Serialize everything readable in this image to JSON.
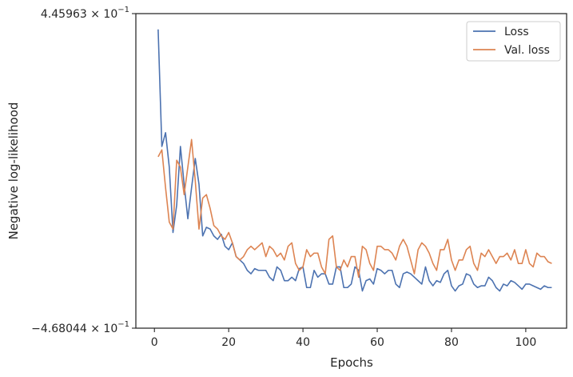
{
  "chart_data": {
    "type": "line",
    "xlabel": "Epochs",
    "ylabel": "Negative log-likelihood",
    "xlim": [
      -5,
      111
    ],
    "ylim": [
      -0.468044,
      0.445963
    ],
    "xticks": [
      0,
      20,
      40,
      60,
      80,
      100
    ],
    "xtick_labels": [
      "0",
      "20",
      "40",
      "60",
      "80",
      "100"
    ],
    "ytick_labels": [
      {
        "value": 0.445963,
        "mantissa": "4.45963",
        "text": "4.45963 × 10",
        "exp": "−1"
      },
      {
        "value": -0.468044,
        "mantissa": "−4.68044",
        "text": "−4.68044 × 10",
        "exp": "−1"
      }
    ],
    "grid": false,
    "legend_position": "top-right",
    "colors": {
      "Loss": "#4c72b0",
      "Val. loss": "#dd8452"
    },
    "series": [
      {
        "name": "Loss",
        "color": "#4c72b0",
        "x": [
          1,
          2,
          3,
          4,
          5,
          6,
          7,
          8,
          9,
          10,
          11,
          12,
          13,
          14,
          15,
          16,
          17,
          18,
          19,
          20,
          21,
          22,
          23,
          24,
          25,
          26,
          27,
          28,
          29,
          30,
          31,
          32,
          33,
          34,
          35,
          36,
          37,
          38,
          39,
          40,
          41,
          42,
          43,
          44,
          45,
          46,
          47,
          48,
          49,
          50,
          51,
          52,
          53,
          54,
          55,
          56,
          57,
          58,
          59,
          60,
          61,
          62,
          63,
          64,
          65,
          66,
          67,
          68,
          69,
          70,
          71,
          72,
          73,
          74,
          75,
          76,
          77,
          78,
          79,
          80,
          81,
          82,
          83,
          84,
          85,
          86,
          87,
          88,
          89,
          90,
          91,
          92,
          93,
          94,
          95,
          96,
          97,
          98,
          99,
          100,
          101,
          102,
          103,
          104,
          105,
          106,
          107
        ],
        "y": [
          0.4,
          0.06,
          0.1,
          0.0,
          -0.19,
          -0.11,
          0.06,
          -0.05,
          -0.15,
          -0.06,
          0.025,
          -0.05,
          -0.2,
          -0.175,
          -0.18,
          -0.2,
          -0.21,
          -0.195,
          -0.23,
          -0.24,
          -0.22,
          -0.26,
          -0.27,
          -0.28,
          -0.3,
          -0.31,
          -0.295,
          -0.3,
          -0.3,
          -0.3,
          -0.32,
          -0.33,
          -0.29,
          -0.3,
          -0.33,
          -0.33,
          -0.32,
          -0.33,
          -0.295,
          -0.29,
          -0.35,
          -0.35,
          -0.3,
          -0.32,
          -0.31,
          -0.31,
          -0.34,
          -0.34,
          -0.29,
          -0.29,
          -0.35,
          -0.35,
          -0.34,
          -0.29,
          -0.3,
          -0.36,
          -0.33,
          -0.325,
          -0.34,
          -0.295,
          -0.3,
          -0.31,
          -0.3,
          -0.3,
          -0.34,
          -0.35,
          -0.31,
          -0.305,
          -0.31,
          -0.32,
          -0.33,
          -0.34,
          -0.29,
          -0.33,
          -0.345,
          -0.33,
          -0.335,
          -0.31,
          -0.3,
          -0.345,
          -0.36,
          -0.345,
          -0.34,
          -0.31,
          -0.315,
          -0.34,
          -0.35,
          -0.345,
          -0.345,
          -0.32,
          -0.33,
          -0.35,
          -0.36,
          -0.34,
          -0.345,
          -0.33,
          -0.335,
          -0.345,
          -0.355,
          -0.34,
          -0.34,
          -0.345,
          -0.35,
          -0.355,
          -0.345,
          -0.35,
          -0.35
        ]
      },
      {
        "name": "Val. loss",
        "color": "#dd8452",
        "x": [
          1,
          2,
          3,
          4,
          5,
          6,
          7,
          8,
          9,
          10,
          11,
          12,
          13,
          14,
          15,
          16,
          17,
          18,
          19,
          20,
          21,
          22,
          23,
          24,
          25,
          26,
          27,
          28,
          29,
          30,
          31,
          32,
          33,
          34,
          35,
          36,
          37,
          38,
          39,
          40,
          41,
          42,
          43,
          44,
          45,
          46,
          47,
          48,
          49,
          50,
          51,
          52,
          53,
          54,
          55,
          56,
          57,
          58,
          59,
          60,
          61,
          62,
          63,
          64,
          65,
          66,
          67,
          68,
          69,
          70,
          71,
          72,
          73,
          74,
          75,
          76,
          77,
          78,
          79,
          80,
          81,
          82,
          83,
          84,
          85,
          86,
          87,
          88,
          89,
          90,
          91,
          92,
          93,
          94,
          95,
          96,
          97,
          98,
          99,
          100,
          101,
          102,
          103,
          104,
          105,
          106,
          107
        ],
        "y": [
          0.03,
          0.05,
          -0.06,
          -0.16,
          -0.18,
          0.02,
          0.0,
          -0.08,
          0.0,
          0.08,
          -0.04,
          -0.18,
          -0.09,
          -0.08,
          -0.12,
          -0.17,
          -0.18,
          -0.2,
          -0.21,
          -0.19,
          -0.22,
          -0.26,
          -0.27,
          -0.26,
          -0.24,
          -0.23,
          -0.24,
          -0.23,
          -0.22,
          -0.26,
          -0.23,
          -0.24,
          -0.26,
          -0.25,
          -0.27,
          -0.23,
          -0.22,
          -0.28,
          -0.3,
          -0.29,
          -0.24,
          -0.26,
          -0.25,
          -0.25,
          -0.29,
          -0.31,
          -0.21,
          -0.2,
          -0.29,
          -0.3,
          -0.27,
          -0.29,
          -0.26,
          -0.26,
          -0.32,
          -0.23,
          -0.24,
          -0.28,
          -0.3,
          -0.23,
          -0.23,
          -0.24,
          -0.24,
          -0.25,
          -0.27,
          -0.23,
          -0.21,
          -0.23,
          -0.27,
          -0.31,
          -0.24,
          -0.22,
          -0.23,
          -0.25,
          -0.28,
          -0.3,
          -0.24,
          -0.24,
          -0.21,
          -0.27,
          -0.3,
          -0.27,
          -0.27,
          -0.24,
          -0.23,
          -0.28,
          -0.3,
          -0.25,
          -0.26,
          -0.24,
          -0.26,
          -0.28,
          -0.26,
          -0.26,
          -0.25,
          -0.27,
          -0.24,
          -0.28,
          -0.28,
          -0.24,
          -0.28,
          -0.29,
          -0.25,
          -0.26,
          -0.26,
          -0.275,
          -0.28
        ]
      }
    ]
  }
}
